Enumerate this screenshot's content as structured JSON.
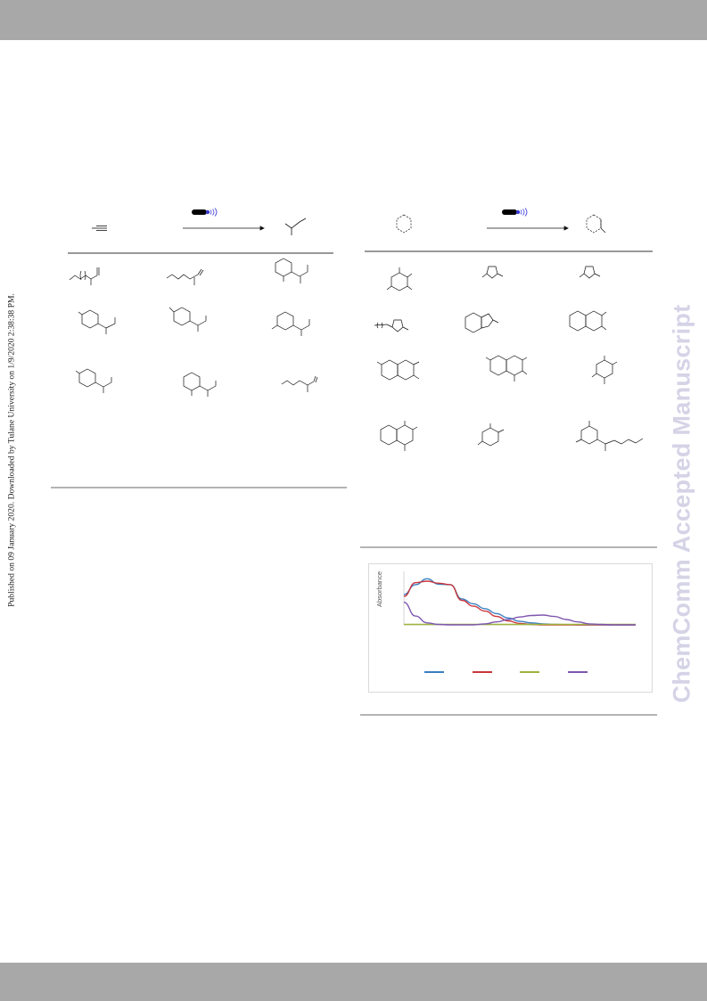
{
  "side_note": "Published on 09 January 2020. Downloaded by Tulane University on 1/9/2020 2:38:38 PM.",
  "watermark": "ChemComm Accepted Manuscript",
  "chart_data": {
    "type": "line",
    "title": "",
    "xlabel": "",
    "ylabel": "Absorbance",
    "grid": false,
    "legend": "bottom",
    "x": [
      0,
      5,
      10,
      15,
      20,
      25,
      30,
      35,
      40,
      45,
      50,
      55,
      60,
      65,
      70,
      75,
      80,
      85,
      90,
      95,
      100
    ],
    "ylim": [
      0,
      1
    ],
    "series": [
      {
        "color": "#3a7fc1",
        "values": [
          0.62,
          0.82,
          0.94,
          0.83,
          0.82,
          0.53,
          0.43,
          0.33,
          0.23,
          0.14,
          0.07,
          0.04,
          0.02,
          0.01,
          0.005,
          0.0,
          0.0,
          0.0,
          0.0,
          0.0,
          0.0
        ]
      },
      {
        "color": "#c9363c",
        "values": [
          0.58,
          0.86,
          0.89,
          0.85,
          0.82,
          0.5,
          0.38,
          0.28,
          0.17,
          0.08,
          0.03,
          0.01,
          0.0,
          0.0,
          0.0,
          0.0,
          0.0,
          0.0,
          0.0,
          0.0,
          0.0
        ]
      },
      {
        "color": "#9cb43c",
        "values": [
          0.01,
          0.01,
          0.01,
          0.01,
          0.01,
          0.01,
          0.01,
          0.01,
          0.01,
          0.01,
          0.01,
          0.01,
          0.01,
          0.01,
          0.01,
          0.01,
          0.01,
          0.01,
          0.01,
          0.01,
          0.01
        ]
      },
      {
        "color": "#7e57b0",
        "values": [
          0.46,
          0.18,
          0.04,
          0.01,
          0.0,
          0.0,
          0.0,
          0.02,
          0.06,
          0.11,
          0.16,
          0.19,
          0.2,
          0.17,
          0.11,
          0.06,
          0.02,
          0.01,
          0.0,
          0.0,
          0.0
        ]
      }
    ]
  }
}
